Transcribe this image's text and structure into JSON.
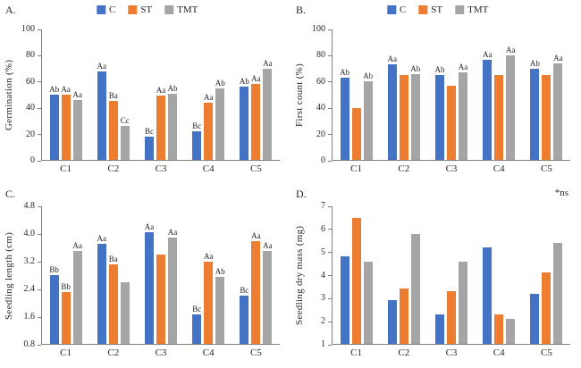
{
  "figure": {
    "legend": [
      "C",
      "ST",
      "TMT"
    ]
  },
  "colors": {
    "series": [
      "#4472C4",
      "#ED7D31",
      "#A5A5A5"
    ],
    "axis": "#808080"
  },
  "chart_data": [
    {
      "type": "bar",
      "panel_label": "A.",
      "ylabel": "Germination (%)",
      "ylim": [
        0,
        100
      ],
      "yticks": [
        "0",
        "20",
        "40",
        "60",
        "80",
        "100"
      ],
      "categories": [
        "C1",
        "C2",
        "C3",
        "C4",
        "C5"
      ],
      "show_legend": true,
      "legend_position": "top",
      "grid": false,
      "annotation": "",
      "series": [
        {
          "name": "C",
          "values": [
            50,
            68,
            18,
            22,
            56
          ],
          "labels": [
            "Ab",
            "Aa",
            "Bc",
            "Bc",
            "Ab"
          ]
        },
        {
          "name": "ST",
          "values": [
            50,
            45,
            49,
            44,
            58
          ],
          "labels": [
            "Aa",
            "Ba",
            "Aa",
            "Aa",
            "Aa"
          ]
        },
        {
          "name": "TMT",
          "values": [
            46,
            26,
            51,
            55,
            70
          ],
          "labels": [
            "Aa",
            "Cc",
            "Ab",
            "Ab",
            "Aa"
          ]
        }
      ]
    },
    {
      "type": "bar",
      "panel_label": "B.",
      "ylabel": "First count  (%)",
      "ylim": [
        0,
        100
      ],
      "yticks": [
        "0",
        "20",
        "40",
        "60",
        "80",
        "100"
      ],
      "categories": [
        "C1",
        "C2",
        "C3",
        "C4",
        "C5"
      ],
      "show_legend": true,
      "legend_position": "top",
      "grid": false,
      "annotation": "",
      "series": [
        {
          "name": "C",
          "values": [
            63,
            73,
            65,
            77,
            70
          ],
          "labels": [
            "Ab",
            "Aa",
            "Ab",
            "Aa",
            "Ab"
          ]
        },
        {
          "name": "ST",
          "values": [
            40,
            65,
            57,
            65,
            65
          ],
          "labels": [
            "",
            "",
            "",
            "",
            ""
          ]
        },
        {
          "name": "TMT",
          "values": [
            60,
            66,
            67,
            80,
            74
          ],
          "labels": [
            "Ab",
            "Ab",
            "Aa",
            "Aa",
            "Aa"
          ]
        }
      ]
    },
    {
      "type": "bar",
      "panel_label": "C.",
      "ylabel": "Seedling  length (cm)",
      "ylim": [
        0.8,
        4.8
      ],
      "yticks": [
        "0.8",
        "1.6",
        "2.4",
        "3.2",
        "4.0",
        "4.8"
      ],
      "categories": [
        "C1",
        "C2",
        "C3",
        "C4",
        "C5"
      ],
      "show_legend": false,
      "grid": false,
      "annotation": "",
      "series": [
        {
          "name": "C",
          "values": [
            2.8,
            3.7,
            4.05,
            1.65,
            2.2
          ],
          "labels": [
            "Bb",
            "Aa",
            "Aa",
            "Bc",
            "Bc"
          ]
        },
        {
          "name": "ST",
          "values": [
            2.3,
            3.1,
            3.4,
            3.2,
            3.8
          ],
          "labels": [
            "Bb",
            "Ba",
            "",
            "Aa",
            "Aa"
          ]
        },
        {
          "name": "TMT",
          "values": [
            3.5,
            2.6,
            3.9,
            2.75,
            3.5
          ],
          "labels": [
            "Aa",
            "",
            "Aa",
            "Ab",
            "Aa"
          ]
        }
      ]
    },
    {
      "type": "bar",
      "panel_label": "D.",
      "ylabel": "Seedling dry mass (mg)",
      "ylim": [
        1,
        7
      ],
      "yticks": [
        "1",
        "2",
        "3",
        "4",
        "5",
        "6",
        "7"
      ],
      "categories": [
        "C1",
        "C2",
        "C3",
        "C4",
        "C5"
      ],
      "show_legend": false,
      "grid": false,
      "annotation": "*ns",
      "series": [
        {
          "name": "C",
          "values": [
            4.8,
            2.9,
            2.3,
            5.2,
            3.2
          ],
          "labels": [
            "",
            "",
            "",
            "",
            ""
          ]
        },
        {
          "name": "ST",
          "values": [
            6.5,
            3.4,
            3.3,
            2.3,
            4.1
          ],
          "labels": [
            "",
            "",
            "",
            "",
            ""
          ]
        },
        {
          "name": "TMT",
          "values": [
            4.6,
            5.8,
            4.6,
            2.1,
            5.4
          ],
          "labels": [
            "",
            "",
            "",
            "",
            ""
          ]
        }
      ]
    }
  ]
}
